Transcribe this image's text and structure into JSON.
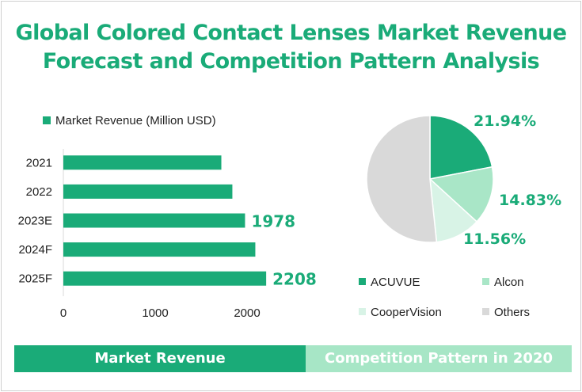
{
  "title": {
    "line1": "Global Colored Contact Lenses Market Revenue",
    "line2": "Forecast and Competition Pattern Analysis"
  },
  "footer": {
    "left_label": "Market Revenue",
    "right_label": "Competition Pattern in 2020"
  },
  "colors": {
    "accent": "#1aab78",
    "bar": "#1aab78",
    "acuvue": "#1aab78",
    "alcon": "#a9e6c7",
    "coopervision": "#d8f3e6",
    "others": "#d9d9d9"
  },
  "chart_data": [
    {
      "type": "bar",
      "orientation": "horizontal",
      "legend": "Market Revenue (Million USD)",
      "categories": [
        "2021",
        "2022",
        "2023E",
        "2024F",
        "2025F"
      ],
      "values": [
        1720,
        1840,
        1978,
        2090,
        2208
      ],
      "data_labels": [
        null,
        null,
        "1978",
        null,
        "2208"
      ],
      "xticks": [
        "0",
        "1000",
        "2000"
      ],
      "xlim": [
        0,
        2500
      ]
    },
    {
      "type": "pie",
      "title": "Competition Pattern in 2020",
      "labels": [
        "ACUVUE",
        "Alcon",
        "CooperVision",
        "Others"
      ],
      "values": [
        21.94,
        14.83,
        11.56,
        51.67
      ],
      "data_labels": [
        "21.94%",
        "14.83%",
        "11.56%",
        null
      ]
    }
  ]
}
